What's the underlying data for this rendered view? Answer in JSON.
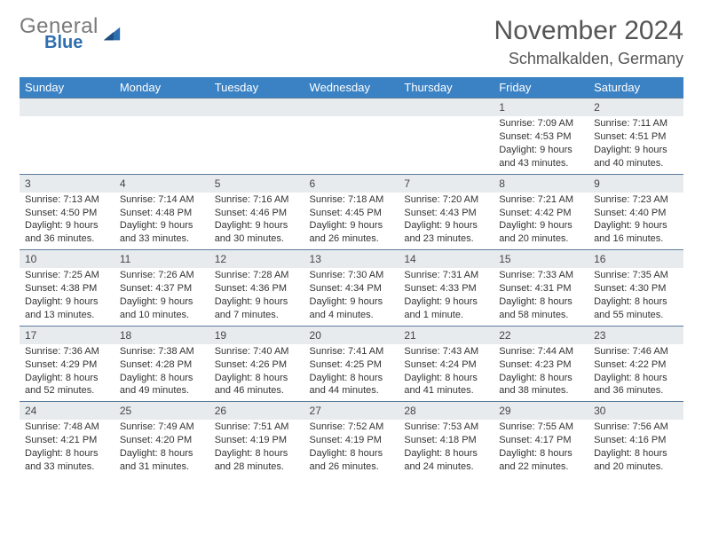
{
  "brand": {
    "part1": "General",
    "part2": "Blue"
  },
  "title": "November 2024",
  "location": "Schmalkalden, Germany",
  "colors": {
    "header_bg": "#3b82c4",
    "header_text": "#ffffff",
    "daynum_bg": "#e8ebee",
    "row_border": "#5a7a99",
    "body_text": "#333333",
    "title_text": "#555555",
    "logo_gray": "#7a7a7a",
    "logo_blue": "#2f6fb0"
  },
  "day_headers": [
    "Sunday",
    "Monday",
    "Tuesday",
    "Wednesday",
    "Thursday",
    "Friday",
    "Saturday"
  ],
  "weeks": [
    [
      {
        "n": "",
        "sr": "",
        "ss": "",
        "dl": ""
      },
      {
        "n": "",
        "sr": "",
        "ss": "",
        "dl": ""
      },
      {
        "n": "",
        "sr": "",
        "ss": "",
        "dl": ""
      },
      {
        "n": "",
        "sr": "",
        "ss": "",
        "dl": ""
      },
      {
        "n": "",
        "sr": "",
        "ss": "",
        "dl": ""
      },
      {
        "n": "1",
        "sr": "Sunrise: 7:09 AM",
        "ss": "Sunset: 4:53 PM",
        "dl": "Daylight: 9 hours and 43 minutes."
      },
      {
        "n": "2",
        "sr": "Sunrise: 7:11 AM",
        "ss": "Sunset: 4:51 PM",
        "dl": "Daylight: 9 hours and 40 minutes."
      }
    ],
    [
      {
        "n": "3",
        "sr": "Sunrise: 7:13 AM",
        "ss": "Sunset: 4:50 PM",
        "dl": "Daylight: 9 hours and 36 minutes."
      },
      {
        "n": "4",
        "sr": "Sunrise: 7:14 AM",
        "ss": "Sunset: 4:48 PM",
        "dl": "Daylight: 9 hours and 33 minutes."
      },
      {
        "n": "5",
        "sr": "Sunrise: 7:16 AM",
        "ss": "Sunset: 4:46 PM",
        "dl": "Daylight: 9 hours and 30 minutes."
      },
      {
        "n": "6",
        "sr": "Sunrise: 7:18 AM",
        "ss": "Sunset: 4:45 PM",
        "dl": "Daylight: 9 hours and 26 minutes."
      },
      {
        "n": "7",
        "sr": "Sunrise: 7:20 AM",
        "ss": "Sunset: 4:43 PM",
        "dl": "Daylight: 9 hours and 23 minutes."
      },
      {
        "n": "8",
        "sr": "Sunrise: 7:21 AM",
        "ss": "Sunset: 4:42 PM",
        "dl": "Daylight: 9 hours and 20 minutes."
      },
      {
        "n": "9",
        "sr": "Sunrise: 7:23 AM",
        "ss": "Sunset: 4:40 PM",
        "dl": "Daylight: 9 hours and 16 minutes."
      }
    ],
    [
      {
        "n": "10",
        "sr": "Sunrise: 7:25 AM",
        "ss": "Sunset: 4:38 PM",
        "dl": "Daylight: 9 hours and 13 minutes."
      },
      {
        "n": "11",
        "sr": "Sunrise: 7:26 AM",
        "ss": "Sunset: 4:37 PM",
        "dl": "Daylight: 9 hours and 10 minutes."
      },
      {
        "n": "12",
        "sr": "Sunrise: 7:28 AM",
        "ss": "Sunset: 4:36 PM",
        "dl": "Daylight: 9 hours and 7 minutes."
      },
      {
        "n": "13",
        "sr": "Sunrise: 7:30 AM",
        "ss": "Sunset: 4:34 PM",
        "dl": "Daylight: 9 hours and 4 minutes."
      },
      {
        "n": "14",
        "sr": "Sunrise: 7:31 AM",
        "ss": "Sunset: 4:33 PM",
        "dl": "Daylight: 9 hours and 1 minute."
      },
      {
        "n": "15",
        "sr": "Sunrise: 7:33 AM",
        "ss": "Sunset: 4:31 PM",
        "dl": "Daylight: 8 hours and 58 minutes."
      },
      {
        "n": "16",
        "sr": "Sunrise: 7:35 AM",
        "ss": "Sunset: 4:30 PM",
        "dl": "Daylight: 8 hours and 55 minutes."
      }
    ],
    [
      {
        "n": "17",
        "sr": "Sunrise: 7:36 AM",
        "ss": "Sunset: 4:29 PM",
        "dl": "Daylight: 8 hours and 52 minutes."
      },
      {
        "n": "18",
        "sr": "Sunrise: 7:38 AM",
        "ss": "Sunset: 4:28 PM",
        "dl": "Daylight: 8 hours and 49 minutes."
      },
      {
        "n": "19",
        "sr": "Sunrise: 7:40 AM",
        "ss": "Sunset: 4:26 PM",
        "dl": "Daylight: 8 hours and 46 minutes."
      },
      {
        "n": "20",
        "sr": "Sunrise: 7:41 AM",
        "ss": "Sunset: 4:25 PM",
        "dl": "Daylight: 8 hours and 44 minutes."
      },
      {
        "n": "21",
        "sr": "Sunrise: 7:43 AM",
        "ss": "Sunset: 4:24 PM",
        "dl": "Daylight: 8 hours and 41 minutes."
      },
      {
        "n": "22",
        "sr": "Sunrise: 7:44 AM",
        "ss": "Sunset: 4:23 PM",
        "dl": "Daylight: 8 hours and 38 minutes."
      },
      {
        "n": "23",
        "sr": "Sunrise: 7:46 AM",
        "ss": "Sunset: 4:22 PM",
        "dl": "Daylight: 8 hours and 36 minutes."
      }
    ],
    [
      {
        "n": "24",
        "sr": "Sunrise: 7:48 AM",
        "ss": "Sunset: 4:21 PM",
        "dl": "Daylight: 8 hours and 33 minutes."
      },
      {
        "n": "25",
        "sr": "Sunrise: 7:49 AM",
        "ss": "Sunset: 4:20 PM",
        "dl": "Daylight: 8 hours and 31 minutes."
      },
      {
        "n": "26",
        "sr": "Sunrise: 7:51 AM",
        "ss": "Sunset: 4:19 PM",
        "dl": "Daylight: 8 hours and 28 minutes."
      },
      {
        "n": "27",
        "sr": "Sunrise: 7:52 AM",
        "ss": "Sunset: 4:19 PM",
        "dl": "Daylight: 8 hours and 26 minutes."
      },
      {
        "n": "28",
        "sr": "Sunrise: 7:53 AM",
        "ss": "Sunset: 4:18 PM",
        "dl": "Daylight: 8 hours and 24 minutes."
      },
      {
        "n": "29",
        "sr": "Sunrise: 7:55 AM",
        "ss": "Sunset: 4:17 PM",
        "dl": "Daylight: 8 hours and 22 minutes."
      },
      {
        "n": "30",
        "sr": "Sunrise: 7:56 AM",
        "ss": "Sunset: 4:16 PM",
        "dl": "Daylight: 8 hours and 20 minutes."
      }
    ]
  ]
}
